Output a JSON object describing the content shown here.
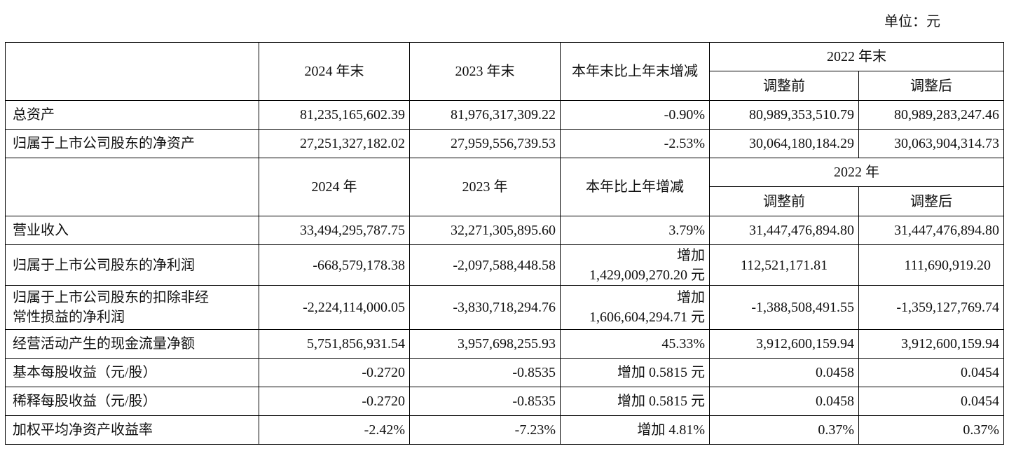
{
  "unit": "单位：元",
  "header1": {
    "col1": "2024 年末",
    "col2": "2023 年末",
    "col3": "本年末比上年末增减",
    "year": "2022 年末",
    "before": "调整前",
    "after": "调整后"
  },
  "rows1": [
    {
      "label": "总资产",
      "v2024": "81,235,165,602.39",
      "v2023": "81,976,317,309.22",
      "change": "-0.90%",
      "before": "80,989,353,510.79",
      "after": "80,989,283,247.46"
    },
    {
      "label": "归属于上市公司股东的净资产",
      "v2024": "27,251,327,182.02",
      "v2023": "27,959,556,739.53",
      "change": "-2.53%",
      "before": "30,064,180,184.29",
      "after": "30,063,904,314.73"
    }
  ],
  "header2": {
    "col1": "2024 年",
    "col2": "2023 年",
    "col3": "本年比上年增减",
    "year": "2022 年",
    "before": "调整前",
    "after": "调整后"
  },
  "rows2": [
    {
      "label": "营业收入",
      "v2024": "33,494,295,787.75",
      "v2023": "32,271,305,895.60",
      "change": "3.79%",
      "before": "31,447,476,894.80",
      "after": "31,447,476,894.80"
    },
    {
      "label": "归属于上市公司股东的净利润",
      "v2024": "-668,579,178.38",
      "v2023": "-2,097,588,448.58",
      "change_l1": "增加",
      "change_l2": "1,429,009,270.20 元",
      "before": "112,521,171.81",
      "after": "111,690,919.20"
    },
    {
      "label_l1": "归属于上市公司股东的扣除非经",
      "label_l2": "常性损益的净利润",
      "v2024": "-2,224,114,000.05",
      "v2023": "-3,830,718,294.76",
      "change_l1": "增加",
      "change_l2": "1,606,604,294.71 元",
      "before": "-1,388,508,491.55",
      "after": "-1,359,127,769.74"
    },
    {
      "label": "经营活动产生的现金流量净额",
      "v2024": "5,751,856,931.54",
      "v2023": "3,957,698,255.93",
      "change": "45.33%",
      "before": "3,912,600,159.94",
      "after": "3,912,600,159.94"
    },
    {
      "label": "基本每股收益（元/股）",
      "v2024": "-0.2720",
      "v2023": "-0.8535",
      "change": "增加 0.5815 元",
      "before": "0.0458",
      "after": "0.0454"
    },
    {
      "label": "稀释每股收益（元/股）",
      "v2024": "-0.2720",
      "v2023": "-0.8535",
      "change": "增加 0.5815 元",
      "before": "0.0458",
      "after": "0.0454"
    },
    {
      "label": "加权平均净资产收益率",
      "v2024": "-2.42%",
      "v2023": "-7.23%",
      "change": "增加 4.81%",
      "before": "0.37%",
      "after": "0.37%"
    }
  ]
}
